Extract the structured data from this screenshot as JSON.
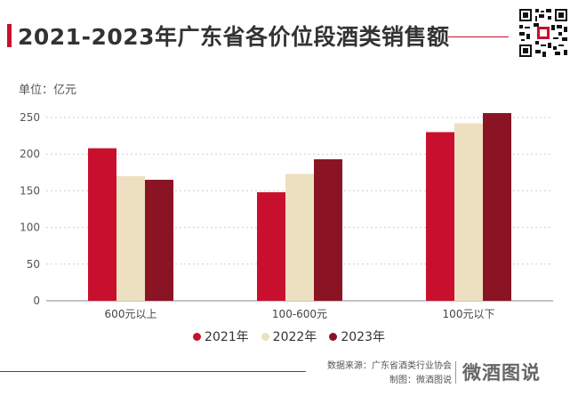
{
  "title": "2021-2023年广东省各价位段酒类销售额",
  "unit_label": "单位：亿元",
  "source_line": "数据来源：广东省酒类行业协会",
  "credit_line": "制图：微酒图说",
  "brand": "微酒图说",
  "colors": {
    "accent": "#c8102e",
    "s2021": "#c8102e",
    "s2022": "#ede0c0",
    "s2023": "#8b1424"
  },
  "chart_data": {
    "type": "bar",
    "categories": [
      "600元以上",
      "100-600元",
      "100元以下"
    ],
    "series": [
      {
        "name": "2021年",
        "values": [
          208,
          148,
          230
        ]
      },
      {
        "name": "2022年",
        "values": [
          170,
          173,
          242
        ]
      },
      {
        "name": "2023年",
        "values": [
          165,
          193,
          256
        ]
      }
    ],
    "ylim": [
      0,
      250
    ],
    "yticks": [
      0,
      50,
      100,
      150,
      200,
      250
    ],
    "grid": true,
    "legend": "bottom"
  }
}
